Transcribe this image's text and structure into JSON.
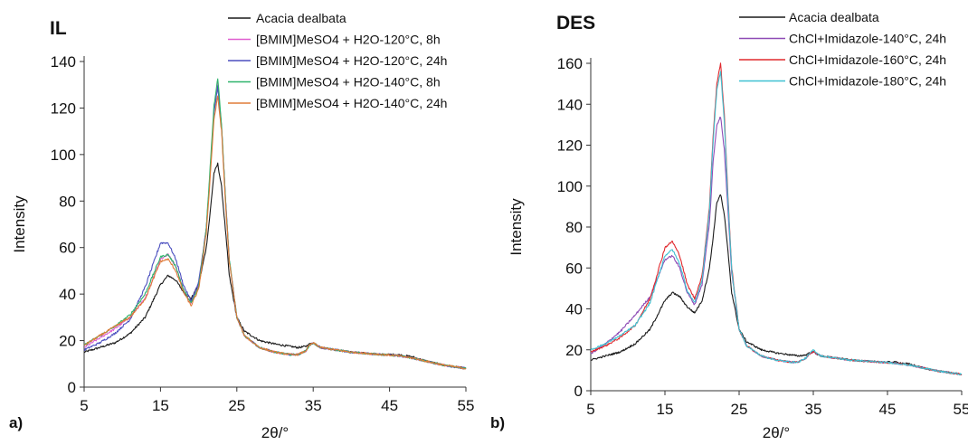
{
  "chart_data": [
    {
      "type": "line",
      "panel_label": "a)",
      "heading": "IL",
      "xlabel": "2θ/°",
      "ylabel": "Intensity",
      "xlim": [
        5,
        55
      ],
      "ylim": [
        0,
        140
      ],
      "x_ticks": [
        "5",
        "15",
        "25",
        "35",
        "45",
        "55"
      ],
      "y_ticks": [
        "0",
        "20",
        "40",
        "60",
        "80",
        "100",
        "120",
        "140"
      ],
      "grid": false,
      "legend_position": "top-right",
      "x": [
        5,
        7,
        9,
        11,
        13,
        15,
        16,
        17,
        18,
        19,
        20,
        21,
        21.5,
        22,
        22.5,
        23,
        23.5,
        24,
        25,
        26,
        28,
        30,
        32,
        33,
        34,
        34.5,
        35,
        36,
        38,
        40,
        42,
        44,
        46,
        48,
        50,
        52,
        55
      ],
      "series": [
        {
          "name": "Acacia dealbata",
          "color": "#1a1a1a",
          "values": [
            15,
            17,
            19,
            23,
            30,
            44,
            48,
            46,
            41,
            38,
            44,
            60,
            75,
            92,
            96,
            86,
            68,
            48,
            30,
            24,
            20,
            18.5,
            17.5,
            17,
            17.5,
            18.5,
            19,
            17,
            16,
            15,
            14.5,
            14,
            14,
            13,
            11,
            9.5,
            8
          ]
        },
        {
          "name": "[BMIM]MeSO4 + H2O-120°C, 8h",
          "color": "#e05fd0",
          "values": [
            17,
            21,
            25,
            30,
            38,
            55,
            57,
            52,
            42,
            36,
            44,
            68,
            92,
            118,
            131,
            112,
            82,
            55,
            30,
            22,
            17,
            15,
            14,
            14,
            15.5,
            18,
            19,
            17,
            16,
            15,
            14.5,
            14,
            13.5,
            12.5,
            11,
            9.5,
            8
          ]
        },
        {
          "name": "[BMIM]MeSO4 + H2O-120°C, 24h",
          "color": "#4b4fbf",
          "values": [
            16,
            19,
            23,
            29,
            43,
            62,
            62,
            55,
            44,
            37,
            45,
            68,
            92,
            118,
            129,
            112,
            82,
            55,
            30,
            22,
            17,
            15,
            14,
            14,
            15.5,
            18,
            19,
            17,
            16,
            15,
            14.5,
            14,
            13.5,
            12.5,
            11,
            9.5,
            8
          ]
        },
        {
          "name": "[BMIM]MeSO4 + H2O-140°C, 8h",
          "color": "#2eb36b",
          "values": [
            18,
            22,
            26,
            31,
            40,
            56,
            57,
            52,
            42,
            36,
            43,
            68,
            95,
            121,
            133,
            113,
            82,
            55,
            30,
            22,
            17,
            15,
            14,
            14,
            15.5,
            18,
            19,
            17,
            16,
            15,
            14.5,
            14,
            13.5,
            12.5,
            11,
            9.5,
            8
          ]
        },
        {
          "name": "[BMIM]MeSO4 + H2O-140°C, 24h",
          "color": "#e07b39",
          "values": [
            18,
            22,
            26,
            30,
            38,
            54,
            55,
            50,
            41,
            35,
            42,
            66,
            90,
            115,
            125,
            110,
            80,
            54,
            30,
            22,
            17,
            15,
            14,
            14,
            15.5,
            18,
            19,
            17,
            16,
            15,
            14.5,
            14,
            13.5,
            12.5,
            11,
            9.5,
            8
          ]
        }
      ]
    },
    {
      "type": "line",
      "panel_label": "b)",
      "heading": "DES",
      "xlabel": "2θ/°",
      "ylabel": "Intensity",
      "xlim": [
        5,
        55
      ],
      "ylim": [
        0,
        160
      ],
      "x_ticks": [
        "5",
        "15",
        "25",
        "35",
        "45",
        "55"
      ],
      "y_ticks": [
        "0",
        "20",
        "40",
        "60",
        "80",
        "100",
        "120",
        "140",
        "160"
      ],
      "grid": false,
      "legend_position": "top-right",
      "x": [
        5,
        7,
        9,
        11,
        13,
        15,
        16,
        17,
        18,
        19,
        20,
        21,
        21.5,
        22,
        22.5,
        23,
        23.5,
        24,
        25,
        26,
        28,
        30,
        32,
        33,
        34,
        34.5,
        35,
        36,
        38,
        40,
        42,
        44,
        46,
        48,
        50,
        52,
        55
      ],
      "series": [
        {
          "name": "Acacia dealbata",
          "color": "#1a1a1a",
          "values": [
            15,
            17,
            19,
            23,
            30,
            44,
            48,
            46,
            41,
            38,
            44,
            60,
            75,
            92,
            96,
            86,
            68,
            48,
            30,
            24,
            20,
            18.5,
            17.5,
            17,
            17.5,
            18.5,
            19,
            17,
            16,
            15,
            14.5,
            14,
            14,
            13,
            11,
            9.5,
            8
          ]
        },
        {
          "name": "ChCl+Imidazole-140°C, 24h",
          "color": "#8e4bb5",
          "values": [
            18,
            23,
            29,
            37,
            46,
            64,
            66,
            60,
            48,
            42,
            52,
            82,
            112,
            130,
            134,
            118,
            88,
            58,
            30,
            22,
            17,
            15,
            14,
            14,
            16,
            18,
            19,
            17,
            16,
            15,
            14.5,
            14,
            13.5,
            12.5,
            11,
            9.5,
            8
          ]
        },
        {
          "name": "ChCl+Imidazole-160°C, 24h",
          "color": "#e0282d",
          "values": [
            19,
            22,
            26,
            32,
            45,
            70,
            73,
            66,
            52,
            45,
            56,
            90,
            125,
            150,
            160,
            135,
            95,
            60,
            30,
            22,
            17,
            15,
            14,
            14,
            16,
            18,
            19,
            17,
            16,
            15,
            14.5,
            14,
            13.5,
            12.5,
            11,
            9.5,
            8
          ]
        },
        {
          "name": "ChCl+Imidazole-180°C, 24h",
          "color": "#3fc1d1",
          "values": [
            20,
            23,
            27,
            32,
            43,
            66,
            69,
            62,
            49,
            43,
            54,
            88,
            122,
            147,
            156,
            132,
            93,
            59,
            30,
            22,
            17,
            15,
            14,
            14,
            16,
            18,
            20,
            17,
            16,
            15,
            14.5,
            14,
            13.5,
            12.5,
            11,
            9.5,
            8
          ]
        }
      ]
    }
  ]
}
